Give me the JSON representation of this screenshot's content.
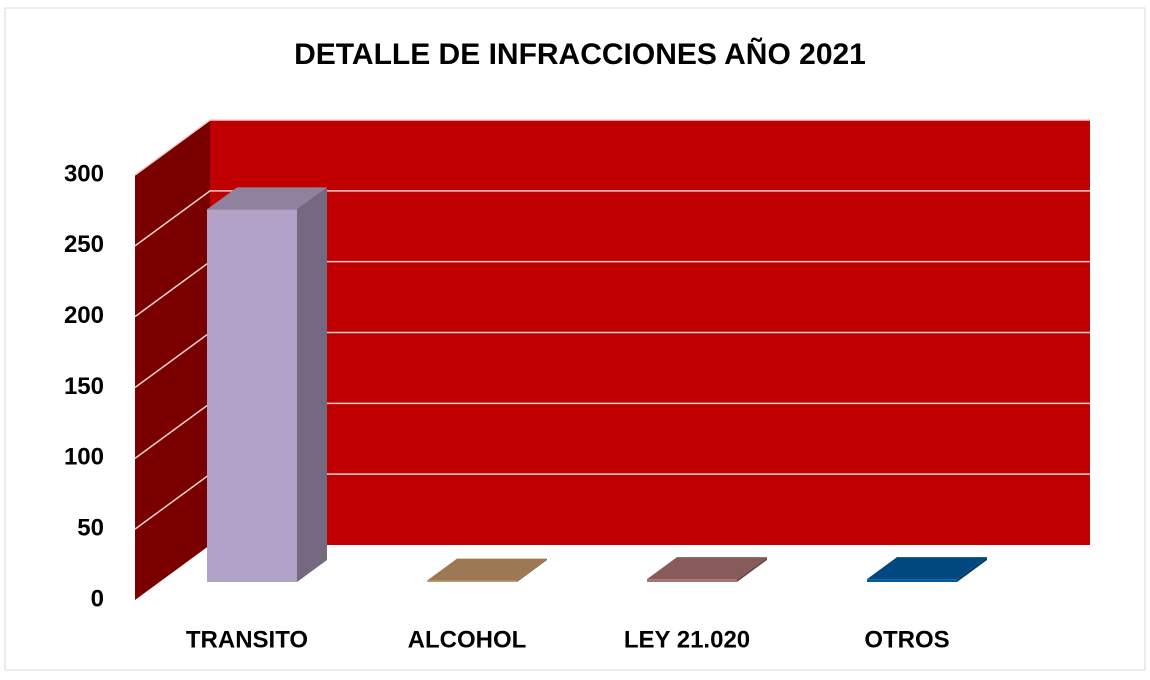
{
  "chart_data": {
    "type": "bar3d",
    "title": "DETALLE DE INFRACCIONES AÑO 2021",
    "categories": [
      "TRANSITO",
      "ALCOHOL",
      "LEY 21.020",
      "OTROS"
    ],
    "values": [
      263,
      1,
      2,
      2
    ],
    "colors": [
      "#b3a2c7",
      "#c4966a",
      "#a97270",
      "#005a9c"
    ],
    "wall_color": "#c00000",
    "ylim": [
      0,
      300
    ],
    "yticks": [
      0,
      50,
      100,
      150,
      200,
      250,
      300
    ],
    "grid": true
  }
}
